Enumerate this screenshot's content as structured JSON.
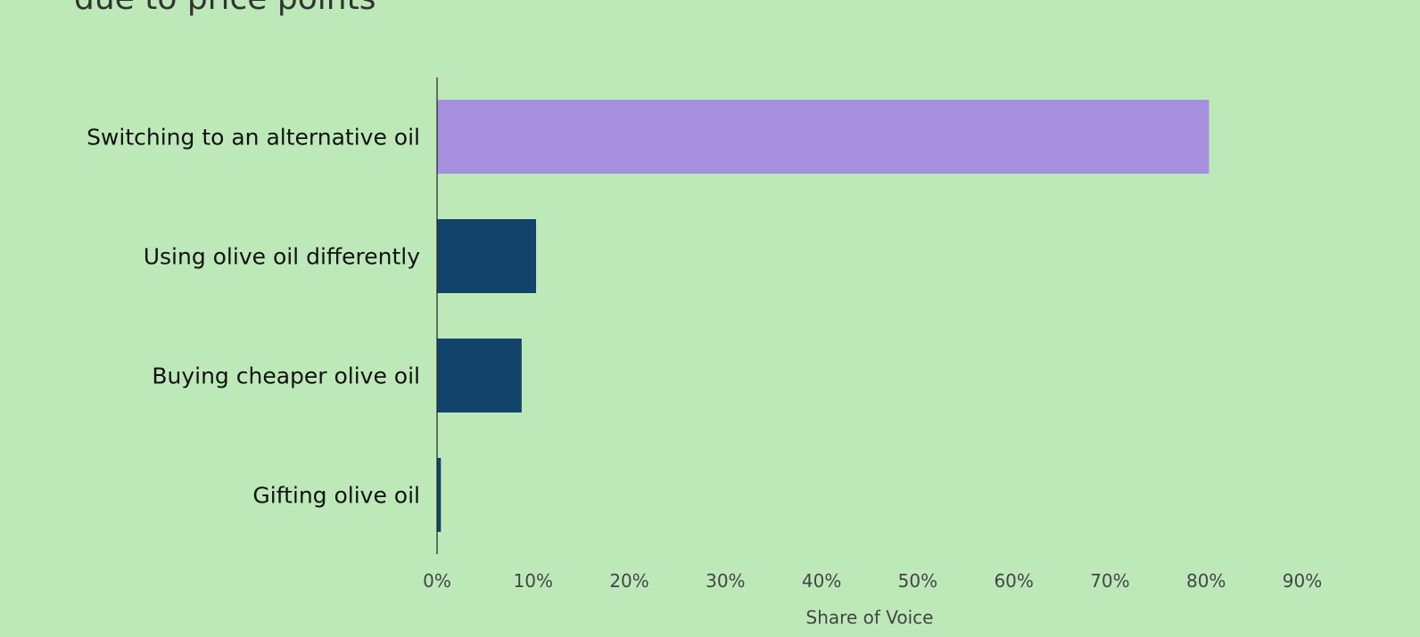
{
  "chart_data": {
    "type": "bar",
    "orientation": "horizontal",
    "title": "due to price points",
    "categories": [
      "Switching to an alternative oil",
      "Using olive oil differently",
      "Buying cheaper olive oil",
      "Gifting olive oil"
    ],
    "values": [
      80.3,
      10.3,
      8.8,
      0.4
    ],
    "colors": [
      "#a78fdf",
      "#12436a",
      "#12436a",
      "#12436a"
    ],
    "xlabel": "Share of Voice",
    "ylabel": "",
    "xlim": [
      0,
      90
    ],
    "xticks": [
      "0%",
      "10%",
      "20%",
      "30%",
      "40%",
      "50%",
      "60%",
      "70%",
      "80%",
      "90%"
    ],
    "grid": false,
    "background": "#bde9b9"
  }
}
